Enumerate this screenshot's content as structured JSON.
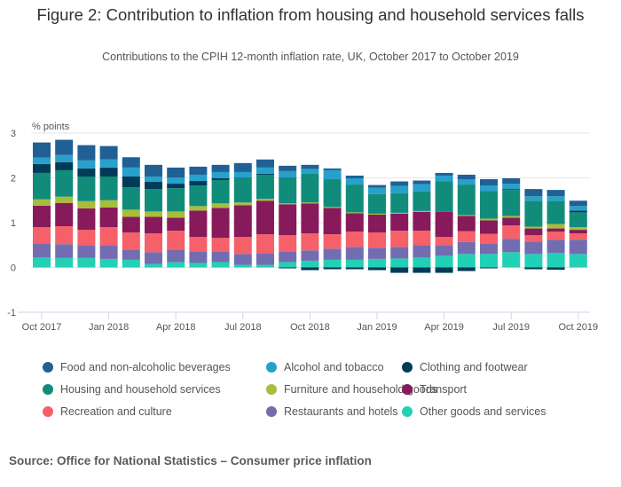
{
  "title": "Figure 2: Contribution to inflation from housing and household services falls",
  "subtitle": "Contributions to the CPIH 12-month inflation rate, UK, October 2017 to October 2019",
  "source": "Source: Office for National Statistics – Consumer price inflation",
  "chart_data": {
    "type": "bar",
    "stacked": true,
    "title": "Figure 2: Contribution to inflation from housing and household services falls",
    "subtitle": "Contributions to the CPIH 12-month inflation rate, UK, October 2017 to October 2019",
    "ylabel": "% points",
    "xlabel": "",
    "ylim": [
      -1,
      3
    ],
    "yticks": [
      3,
      2,
      1,
      0,
      -1
    ],
    "grid": true,
    "legend_position": "bottom",
    "categories": [
      "Oct 2017",
      "Nov 2017",
      "Dec 2017",
      "Jan 2018",
      "Feb 2018",
      "Mar 2018",
      "Apr 2018",
      "May 2018",
      "Jun 2018",
      "Jul 2018",
      "Aug 2018",
      "Sep 2018",
      "Oct 2018",
      "Nov 2018",
      "Dec 2018",
      "Jan 2019",
      "Feb 2019",
      "Mar 2019",
      "Apr 2019",
      "May 2019",
      "Jun 2019",
      "Jul 2019",
      "Aug 2019",
      "Sep 2019",
      "Oct 2019"
    ],
    "xtick_labels": [
      "Oct 2017",
      "Jan 2018",
      "Apr 2018",
      "Jul 2018",
      "Oct 2018",
      "Jan 2019",
      "Apr 2019",
      "Jul 2019",
      "Oct 2019"
    ],
    "series": [
      {
        "name": "Other goods and services",
        "color": "#22d0b6",
        "values": [
          0.22,
          0.21,
          0.21,
          0.19,
          0.17,
          0.08,
          0.12,
          0.1,
          0.12,
          0.06,
          0.06,
          0.12,
          0.15,
          0.17,
          0.17,
          0.19,
          0.2,
          0.22,
          0.26,
          0.3,
          0.3,
          0.34,
          0.3,
          0.32,
          0.3
        ]
      },
      {
        "name": "Restaurants and hotels",
        "color": "#746cb1",
        "values": [
          0.32,
          0.31,
          0.29,
          0.31,
          0.23,
          0.26,
          0.28,
          0.26,
          0.24,
          0.24,
          0.26,
          0.24,
          0.23,
          0.25,
          0.29,
          0.25,
          0.26,
          0.28,
          0.24,
          0.27,
          0.24,
          0.3,
          0.28,
          0.3,
          0.32
        ]
      },
      {
        "name": "Recreation and culture",
        "color": "#f66068",
        "values": [
          0.36,
          0.4,
          0.34,
          0.4,
          0.38,
          0.42,
          0.42,
          0.32,
          0.3,
          0.38,
          0.42,
          0.36,
          0.38,
          0.32,
          0.34,
          0.34,
          0.36,
          0.32,
          0.18,
          0.24,
          0.21,
          0.3,
          0.14,
          0.18,
          0.14
        ]
      },
      {
        "name": "Transport",
        "color": "#871a5b",
        "values": [
          0.48,
          0.52,
          0.48,
          0.44,
          0.35,
          0.37,
          0.29,
          0.59,
          0.67,
          0.71,
          0.75,
          0.69,
          0.67,
          0.59,
          0.41,
          0.4,
          0.38,
          0.42,
          0.56,
          0.34,
          0.3,
          0.17,
          0.15,
          0.07,
          0.08
        ]
      },
      {
        "name": "Furniture and household goods",
        "color": "#a8bd3a",
        "values": [
          0.14,
          0.14,
          0.16,
          0.16,
          0.16,
          0.12,
          0.14,
          0.1,
          0.1,
          0.06,
          0.04,
          0.02,
          0.02,
          0.02,
          0.02,
          0.02,
          0.02,
          0.02,
          0.0,
          0.02,
          0.04,
          0.04,
          0.04,
          0.1,
          0.06
        ]
      },
      {
        "name": "Housing and household services",
        "color": "#118c7b",
        "values": [
          0.59,
          0.59,
          0.55,
          0.53,
          0.5,
          0.5,
          0.52,
          0.46,
          0.52,
          0.56,
          0.54,
          0.58,
          0.64,
          0.62,
          0.62,
          0.44,
          0.44,
          0.44,
          0.68,
          0.68,
          0.62,
          0.58,
          0.58,
          0.52,
          0.33
        ]
      },
      {
        "name": "Clothing and footwear",
        "color": "#003c57",
        "values": [
          0.2,
          0.18,
          0.18,
          0.2,
          0.24,
          0.16,
          0.1,
          0.1,
          0.04,
          0.0,
          0.02,
          -0.02,
          -0.06,
          -0.04,
          -0.04,
          -0.06,
          -0.12,
          -0.12,
          -0.12,
          -0.08,
          -0.02,
          0.02,
          -0.04,
          -0.05,
          0.04
        ]
      },
      {
        "name": "Alcohol and tobacco",
        "color": "#27a0cc",
        "values": [
          0.14,
          0.16,
          0.18,
          0.18,
          0.2,
          0.12,
          0.14,
          0.14,
          0.14,
          0.12,
          0.14,
          0.14,
          0.11,
          0.2,
          0.14,
          0.14,
          0.16,
          0.16,
          0.13,
          0.12,
          0.12,
          0.12,
          0.1,
          0.1,
          0.1
        ]
      },
      {
        "name": "Food and non-alcoholic beverages",
        "color": "#206095",
        "values": [
          0.34,
          0.34,
          0.34,
          0.3,
          0.23,
          0.26,
          0.22,
          0.18,
          0.16,
          0.2,
          0.18,
          0.12,
          0.09,
          0.04,
          0.06,
          0.06,
          0.1,
          0.08,
          0.06,
          0.1,
          0.14,
          0.12,
          0.16,
          0.14,
          0.12
        ]
      }
    ]
  },
  "legend": [
    {
      "label": "Food and non-alcoholic beverages",
      "color": "#206095"
    },
    {
      "label": "Alcohol and tobacco",
      "color": "#27a0cc"
    },
    {
      "label": "Clothing and footwear",
      "color": "#003c57"
    },
    {
      "label": "Housing and household services",
      "color": "#118c7b"
    },
    {
      "label": "Furniture and household goods",
      "color": "#a8bd3a"
    },
    {
      "label": "Transport",
      "color": "#871a5b"
    },
    {
      "label": "Recreation and culture",
      "color": "#f66068"
    },
    {
      "label": "Restaurants and hotels",
      "color": "#746cb1"
    },
    {
      "label": "Other goods and services",
      "color": "#22d0b6"
    }
  ]
}
